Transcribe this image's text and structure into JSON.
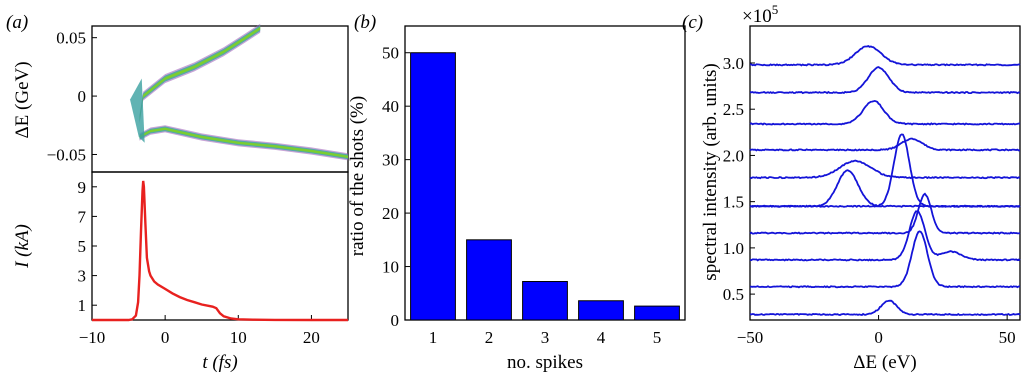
{
  "chart_data": [
    {
      "panel": "(a)",
      "type": "heatmap",
      "subplots": [
        {
          "type": "heatmap",
          "ylabel": "ΔE (GeV)",
          "xlim": [
            -10,
            25
          ],
          "ylim": [
            -0.065,
            0.06
          ],
          "yticks": [
            "0.05",
            "0",
            "−0.05"
          ],
          "ytick_values": [
            0.05,
            0,
            -0.05
          ],
          "upper_branch": [
            [
              -3.5,
              -0.02
            ],
            [
              -3,
              0.0
            ],
            [
              0,
              0.015
            ],
            [
              4,
              0.025
            ],
            [
              8,
              0.038
            ],
            [
              11,
              0.05
            ],
            [
              13,
              0.058
            ]
          ],
          "lower_branch": [
            [
              -3.5,
              -0.035
            ],
            [
              -2,
              -0.03
            ],
            [
              0,
              -0.028
            ],
            [
              5,
              -0.035
            ],
            [
              10,
              -0.04
            ],
            [
              15,
              -0.043
            ],
            [
              20,
              -0.047
            ],
            [
              25,
              -0.052
            ]
          ]
        },
        {
          "type": "line",
          "ylabel": "I (kA)",
          "xlabel": "t (fs)",
          "xlim": [
            -10,
            25
          ],
          "ylim": [
            0,
            10
          ],
          "yticks": [
            "9",
            "7",
            "5",
            "3",
            "1"
          ],
          "ytick_values": [
            9,
            7,
            5,
            3,
            1
          ],
          "xticks": [
            "−10",
            "0",
            "10",
            "20"
          ],
          "xtick_values": [
            -10,
            0,
            10,
            20
          ],
          "color": "#e8211f",
          "x": [
            -10,
            -5,
            -4.5,
            -4,
            -3.7,
            -3.5,
            -3.3,
            -3.1,
            -3.0,
            -2.9,
            -2.7,
            -2.5,
            -2.2,
            -2,
            -1.5,
            -1,
            0,
            1,
            2,
            3,
            4,
            5,
            6,
            6.5,
            7,
            7.5,
            8,
            9,
            10,
            12,
            15,
            20,
            25
          ],
          "y": [
            0,
            0,
            0.05,
            0.3,
            1.2,
            3.0,
            6.0,
            8.7,
            9.4,
            9.0,
            6.5,
            4.2,
            3.3,
            3.0,
            2.6,
            2.4,
            2.1,
            1.8,
            1.55,
            1.35,
            1.2,
            1.05,
            0.95,
            0.9,
            0.8,
            0.45,
            0.25,
            0.1,
            0.05,
            0.02,
            0.01,
            0,
            0
          ]
        }
      ]
    },
    {
      "panel": "(b)",
      "type": "bar",
      "categories": [
        "1",
        "2",
        "3",
        "4",
        "5"
      ],
      "values": [
        50,
        15,
        7.2,
        3.6,
        2.6
      ],
      "ylim": [
        0,
        55
      ],
      "yticks": [
        "50",
        "40",
        "30",
        "20",
        "10",
        "0"
      ],
      "ytick_values": [
        50,
        40,
        30,
        20,
        10,
        0
      ],
      "xlabel": "no. spikes",
      "ylabel": "ratio of the shots (%)",
      "color": "#0000ff"
    },
    {
      "panel": "(c)",
      "type": "line",
      "xlabel": "ΔE (eV)",
      "ylabel": "spectral intensity (arb. units)",
      "multiplier": "×10",
      "multiplier_exp": "5",
      "xlim": [
        -50,
        55
      ],
      "ylim": [
        0.22,
        3.4
      ],
      "xticks": [
        "−50",
        "0",
        "50"
      ],
      "xtick_values": [
        -50,
        0,
        50
      ],
      "yticks": [
        "3.0",
        "2.5",
        "2.0",
        "1.5",
        "1.0",
        "0.5"
      ],
      "ytick_values": [
        3.0,
        2.5,
        2.0,
        1.5,
        1.0,
        0.5
      ],
      "color": "#1414d8",
      "series": [
        {
          "baseline": 0.28,
          "peaks": [
            [
              4,
              0.15,
              3
            ]
          ]
        },
        {
          "baseline": 0.58,
          "peaks": [
            [
              16,
              0.6,
              3
            ]
          ]
        },
        {
          "baseline": 0.87,
          "peaks": [
            [
              15,
              0.53,
              3
            ],
            [
              28,
              0.09,
              4
            ]
          ]
        },
        {
          "baseline": 1.16,
          "peaks": [
            [
              18,
              0.42,
              2.5
            ]
          ]
        },
        {
          "baseline": 1.45,
          "peaks": [
            [
              9,
              0.78,
              3
            ]
          ]
        },
        {
          "baseline": 1.45,
          "peaks": [
            [
              -12,
              0.39,
              4
            ]
          ]
        },
        {
          "baseline": 1.76,
          "peaks": [
            [
              -9,
              0.18,
              6
            ]
          ]
        },
        {
          "baseline": 2.06,
          "peaks": [
            [
              13,
              0.12,
              4
            ]
          ]
        },
        {
          "baseline": 2.34,
          "peaks": [
            [
              -2,
              0.25,
              4
            ]
          ]
        },
        {
          "baseline": 2.68,
          "peaks": [
            [
              0,
              0.27,
              4
            ]
          ]
        },
        {
          "baseline": 2.98,
          "peaks": [
            [
              -4,
              0.2,
              5
            ]
          ]
        }
      ]
    }
  ],
  "panel_labels": [
    "(a)",
    "(b)",
    "(c)"
  ]
}
